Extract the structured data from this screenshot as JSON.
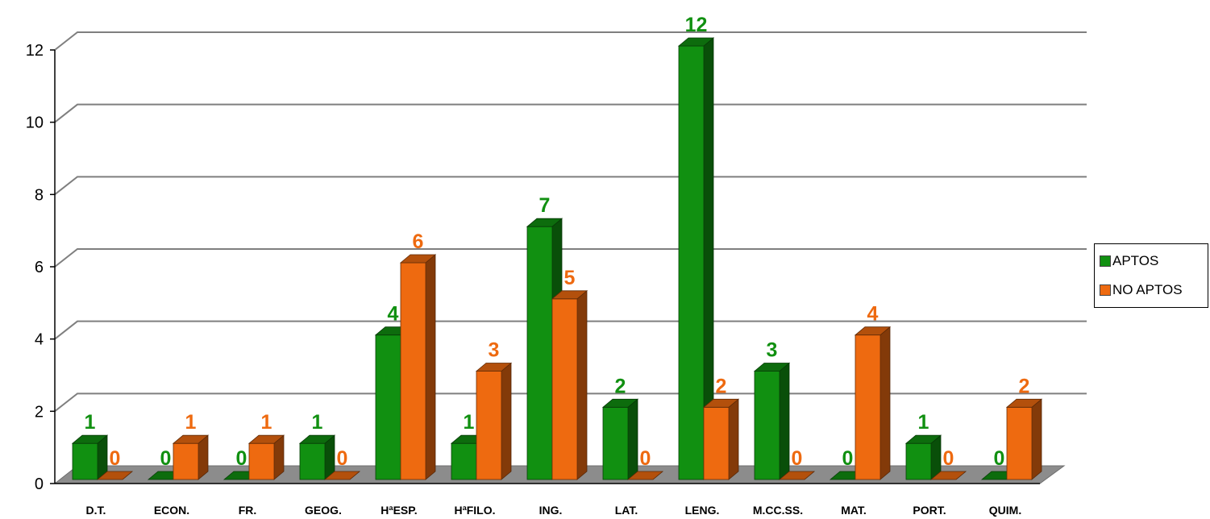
{
  "chart_data": {
    "type": "bar",
    "categories": [
      "D.T.",
      "ECON.",
      "FR.",
      "GEOG.",
      "HªESP.",
      "HªFILO.",
      "ING.",
      "LAT.",
      "LENG.",
      "M.CC.SS.",
      "MAT.",
      "PORT.",
      "QUIM."
    ],
    "series": [
      {
        "name": "APTOS",
        "values": [
          1,
          0,
          0,
          1,
          4,
          1,
          7,
          2,
          12,
          3,
          0,
          1,
          0
        ],
        "color": "#119011"
      },
      {
        "name": "NO APTOS",
        "values": [
          0,
          1,
          1,
          0,
          6,
          3,
          5,
          0,
          2,
          0,
          4,
          0,
          2
        ],
        "color": "#ee6a10"
      }
    ],
    "yticks": [
      0,
      2,
      4,
      6,
      8,
      10,
      12
    ],
    "ylim": [
      0,
      12
    ],
    "grid": true,
    "legend_position": "right",
    "data_labels": true,
    "style": "3d-clustered-bar"
  }
}
